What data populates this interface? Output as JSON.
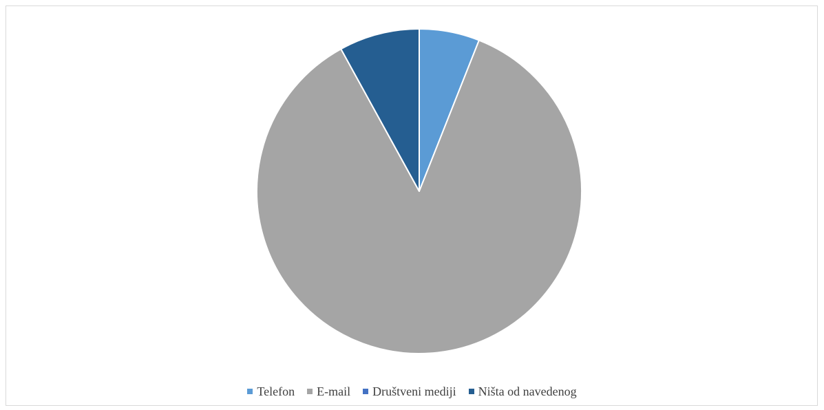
{
  "chart_data": {
    "type": "pie",
    "title": "",
    "slices": [
      {
        "label": "Telefon",
        "value": 6,
        "color": "#5b9bd5"
      },
      {
        "label": "E-mail",
        "value": 86,
        "color": "#a5a5a5"
      },
      {
        "label": "Društveni mediji",
        "value": 0,
        "color": "#4472c4"
      },
      {
        "label": "Ništa od navedenog",
        "value": 8,
        "color": "#255e91"
      }
    ],
    "legend": "bottom"
  }
}
